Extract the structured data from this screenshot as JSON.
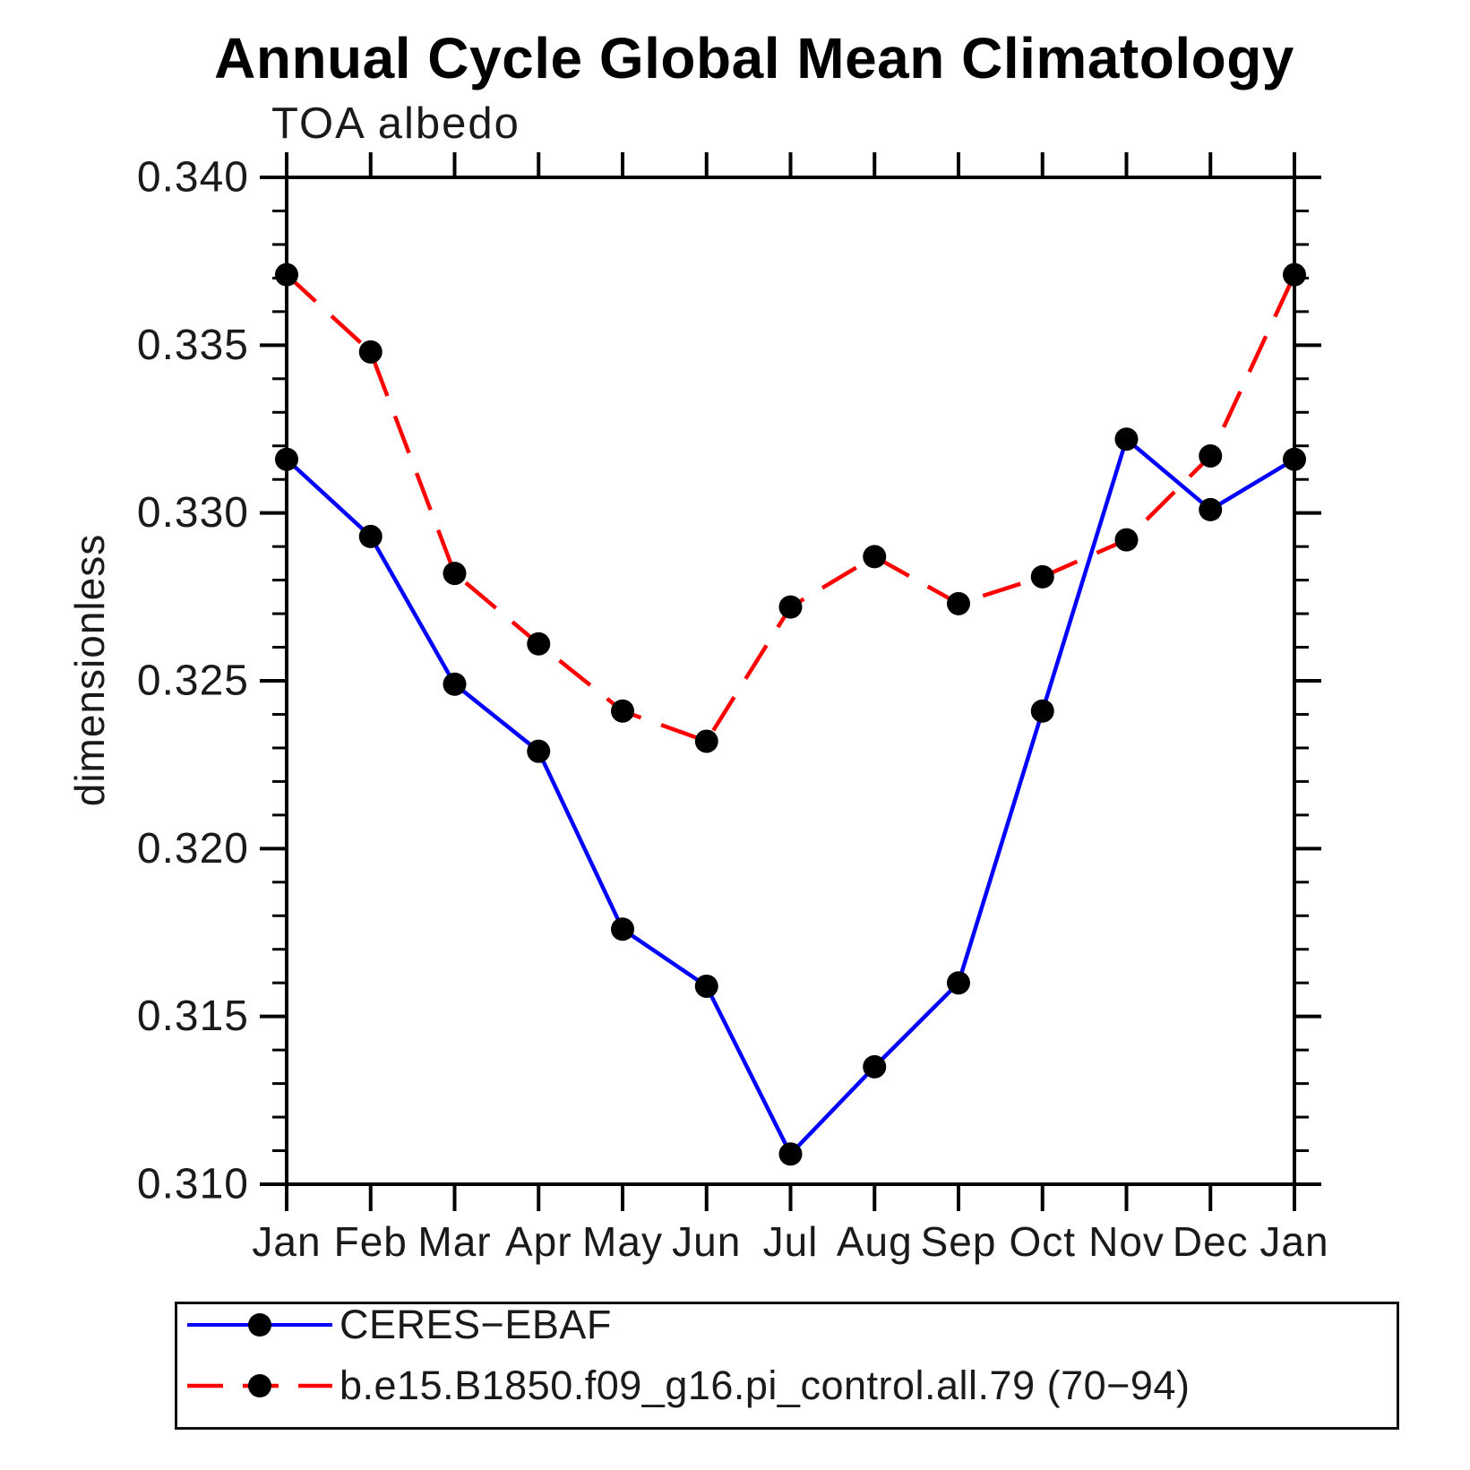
{
  "page": {
    "background": "#ffffff"
  },
  "chart_data": {
    "type": "line",
    "title": "Annual Cycle Global Mean Climatology",
    "subtitle": "TOA albedo",
    "ylabel": "dimensionless",
    "xlabel": "",
    "categories": [
      "Jan",
      "Feb",
      "Mar",
      "Apr",
      "May",
      "Jun",
      "Jul",
      "Aug",
      "Sep",
      "Oct",
      "Nov",
      "Dec",
      "Jan"
    ],
    "ylim": [
      0.31,
      0.34
    ],
    "ytick_major_step": 0.005,
    "ytick_minor_step": 0.001,
    "ytick_labels": [
      "0.340",
      "0.335",
      "0.330",
      "0.325",
      "0.320",
      "0.315",
      "0.310"
    ],
    "grid": false,
    "legend_position": "bottom",
    "marker": {
      "shape": "circle",
      "color": "#000000"
    },
    "axis_color": "#000000",
    "series": [
      {
        "name": "CERES−EBAF",
        "color": "#0000ff",
        "line_style": "solid",
        "values": [
          0.3316,
          0.3293,
          0.3249,
          0.3229,
          0.3176,
          0.3159,
          0.3109,
          0.3135,
          0.316,
          0.3241,
          0.3322,
          0.3301,
          0.3316
        ]
      },
      {
        "name": "b.e15.B1850.f09_g16.pi_control.all.79 (70−94)",
        "color": "#ff0000",
        "line_style": "dashed",
        "values": [
          0.3371,
          0.3348,
          0.3282,
          0.3261,
          0.3241,
          0.3232,
          0.3272,
          0.3287,
          0.3273,
          0.3281,
          0.3292,
          0.3317,
          0.3371
        ]
      }
    ]
  }
}
